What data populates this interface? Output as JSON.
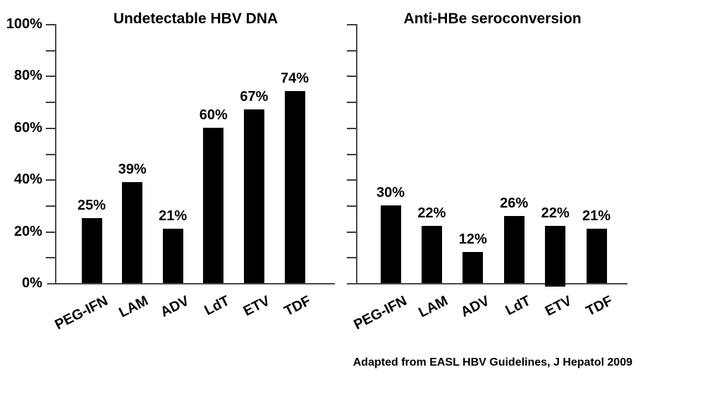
{
  "chart_data": [
    {
      "type": "bar",
      "title": "Undetectable HBV DNA",
      "categories": [
        "PEG-IFN",
        "LAM",
        "ADV",
        "LdT",
        "ETV",
        "TDF"
      ],
      "values": [
        25,
        39,
        21,
        60,
        67,
        74
      ],
      "value_labels": [
        "25%",
        "39%",
        "21%",
        "60%",
        "67%",
        "74%"
      ],
      "ylim": [
        0,
        100
      ],
      "y_major_tick_interval": 20,
      "y_minor_tick_interval": 10,
      "y_tick_labels": [
        "0%",
        "20%",
        "40%",
        "60%",
        "80%",
        "100%"
      ],
      "show_y_tick_labels": true,
      "grid": false,
      "legend": false,
      "bar_color": "#000000",
      "axis_color": "#4a4a4a"
    },
    {
      "type": "bar",
      "title": "Anti-HBe seroconversion",
      "categories": [
        "PEG-IFN",
        "LAM",
        "ADV",
        "LdT",
        "ETV",
        "TDF"
      ],
      "values": [
        30,
        22,
        12,
        26,
        22,
        21
      ],
      "value_labels": [
        "30%",
        "22%",
        "12%",
        "26%",
        "22%",
        "21%"
      ],
      "ylim": [
        0,
        100
      ],
      "y_major_tick_interval": 20,
      "y_minor_tick_interval": 10,
      "y_tick_labels": [],
      "show_y_tick_labels": false,
      "grid": false,
      "legend": false,
      "bar_color": "#000000",
      "axis_color": "#4a4a4a"
    }
  ],
  "footer": {
    "text": "Adapted from EASL HBV Guidelines, J Hepatol 2009"
  },
  "colors": {
    "background": "#ffffff",
    "text": "#000000",
    "bar": "#000000",
    "axis": "#4a4a4a"
  }
}
